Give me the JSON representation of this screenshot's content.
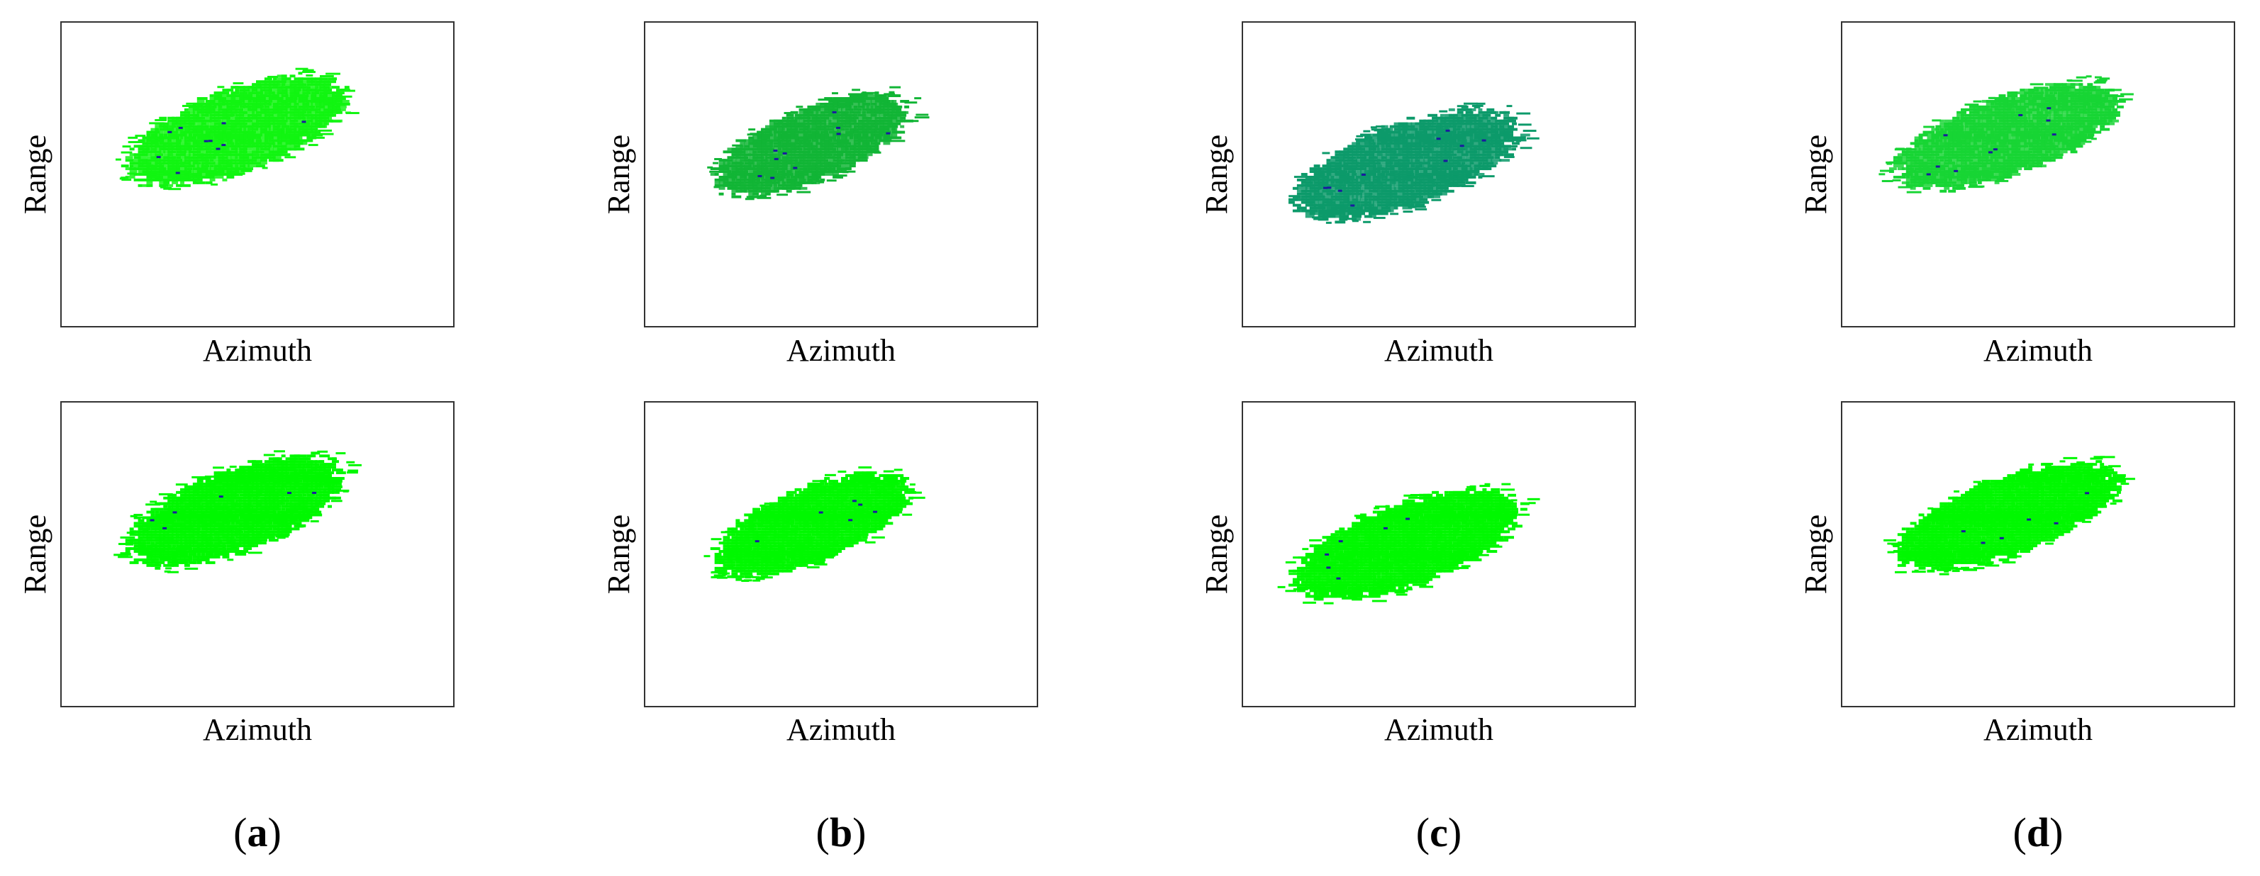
{
  "axes": {
    "xlabel": "Azimuth",
    "ylabel": "Range"
  },
  "colors": {
    "top": [
      "#11f511",
      "#11b535",
      "#0c9a6a",
      "#17d534"
    ],
    "bottom": [
      "#00f800",
      "#00f800",
      "#00f800",
      "#00f800"
    ],
    "speck": "#1a1aa0"
  },
  "subfigures": [
    {
      "letter": "a",
      "label_open": "(",
      "label_close": ")"
    },
    {
      "letter": "b",
      "label_open": "(",
      "label_close": ")"
    },
    {
      "letter": "c",
      "label_open": "(",
      "label_close": ")"
    },
    {
      "letter": "d",
      "label_open": "(",
      "label_close": ")"
    }
  ]
}
